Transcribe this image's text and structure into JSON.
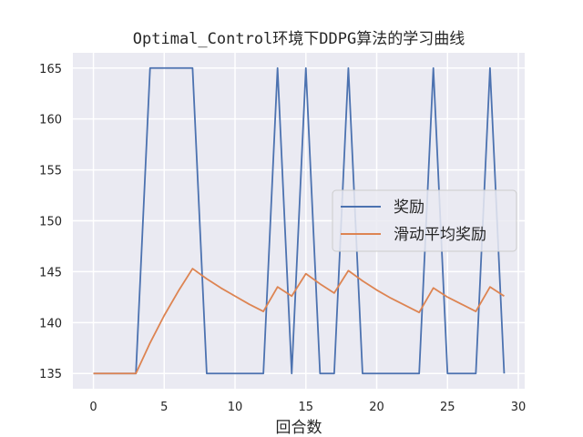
{
  "chart_data": {
    "type": "line",
    "title": "Optimal_Control环境下DDPG算法的学习曲线",
    "xlabel": "回合数",
    "ylabel": "",
    "xlim": [
      -1.45,
      30.45
    ],
    "ylim": [
      133.5,
      166.5
    ],
    "x_ticks": [
      0,
      5,
      10,
      15,
      20,
      25,
      30
    ],
    "y_ticks": [
      135,
      140,
      145,
      150,
      155,
      160,
      165
    ],
    "grid": true,
    "legend_position": "center-right",
    "x": [
      0,
      1,
      2,
      3,
      4,
      5,
      6,
      7,
      8,
      9,
      10,
      11,
      12,
      13,
      14,
      15,
      16,
      17,
      18,
      19,
      20,
      21,
      22,
      23,
      24,
      25,
      26,
      27,
      28,
      29
    ],
    "series": [
      {
        "name": "奖励",
        "color": "#4c72b0",
        "values": [
          135,
          135,
          135,
          135,
          165,
          165,
          165,
          165,
          135,
          135,
          135,
          135,
          135,
          165,
          135,
          165,
          135,
          135,
          165,
          135,
          135,
          135,
          135,
          135,
          165,
          135,
          135,
          135,
          165,
          135
        ]
      },
      {
        "name": "滑动平均奖励",
        "color": "#dd8452",
        "values": [
          135,
          135,
          135,
          135,
          138,
          140.7,
          143.1,
          145.3,
          144.3,
          143.4,
          142.6,
          141.8,
          141.1,
          143.5,
          142.6,
          144.8,
          143.8,
          142.9,
          145.1,
          144.1,
          143.2,
          142.4,
          141.7,
          141,
          143.4,
          142.5,
          141.8,
          141.1,
          143.5,
          142.6
        ]
      }
    ]
  }
}
